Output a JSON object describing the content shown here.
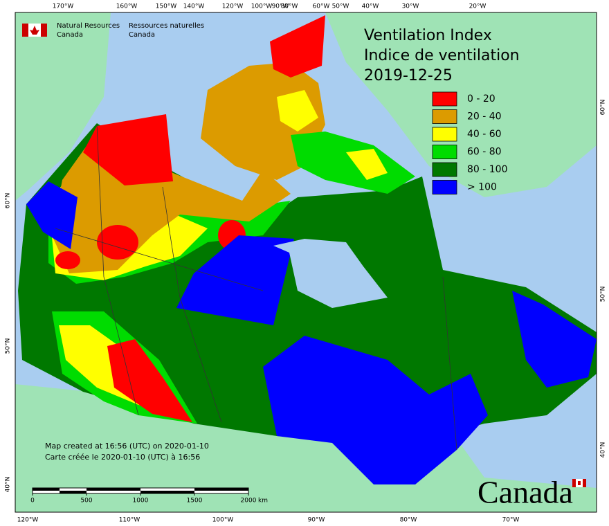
{
  "header": {
    "agency_en": [
      "Natural Resources",
      "Canada"
    ],
    "agency_fr": [
      "Ressources naturelles",
      "Canada"
    ]
  },
  "title": {
    "en": "Ventilation Index",
    "fr": "Indice de ventilation",
    "date": "2019-12-25"
  },
  "legend": [
    {
      "label": "0 - 20",
      "color": "#ff0000"
    },
    {
      "label": "20 - 40",
      "color": "#dc9b00"
    },
    {
      "label": "40 - 60",
      "color": "#ffff00"
    },
    {
      "label": "60 - 80",
      "color": "#00dc00"
    },
    {
      "label": "80 - 100",
      "color": "#007800"
    },
    {
      "label": "> 100",
      "color": "#0000ff"
    }
  ],
  "graticule": {
    "top": [
      "170°W",
      "160°W",
      "150°W",
      "140°W",
      "120°W",
      "100°W",
      "90°W",
      "80°W",
      "60°W",
      "50°W",
      "40°W",
      "30°W",
      "20°W"
    ],
    "bottom": [
      "120°W",
      "110°W",
      "100°W",
      "90°W",
      "80°W",
      "70°W"
    ],
    "left": [
      "60°N",
      "50°N",
      "40°N"
    ],
    "right": [
      "60°N",
      "50°N",
      "40°N"
    ]
  },
  "credit": [
    "Map created at 16:56 (UTC) on 2020-01-10",
    "Carte créée le 2020-01-10 (UTC) à 16:56"
  ],
  "scale_bar": {
    "ticks": [
      0,
      500,
      1000,
      1500,
      2000
    ],
    "unit": "km"
  },
  "wordmark": "Canada"
}
